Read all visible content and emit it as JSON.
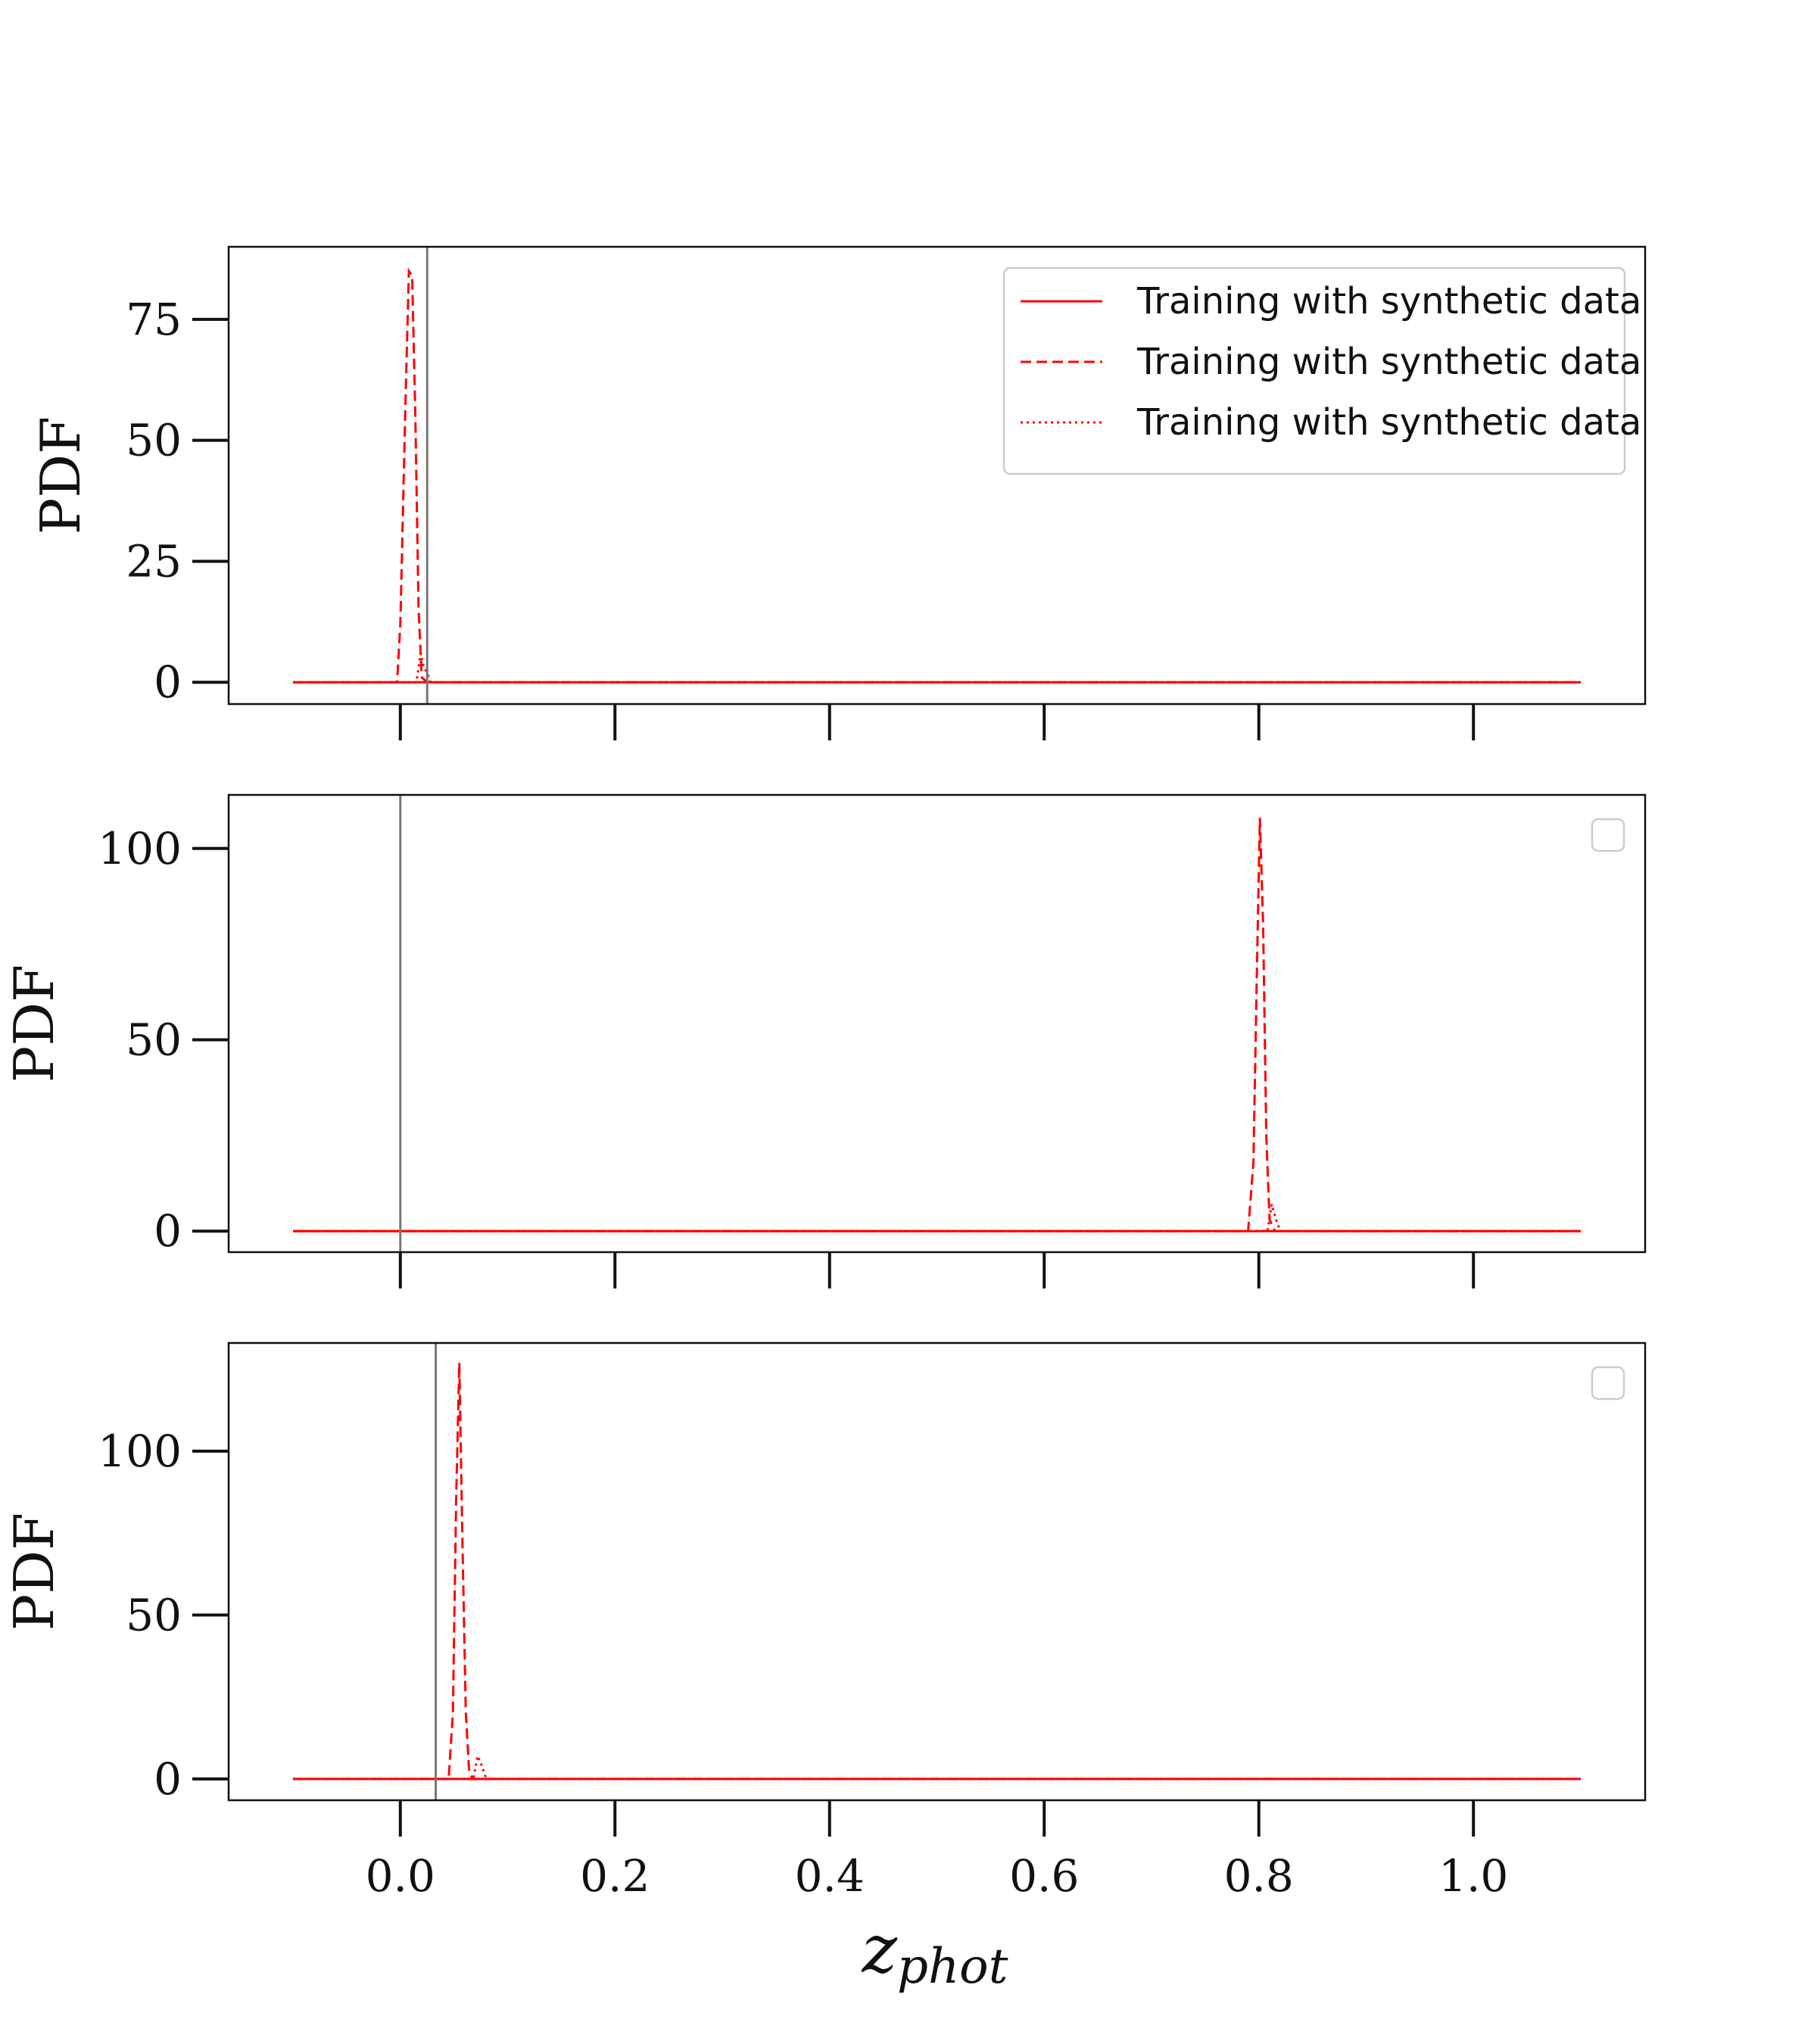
{
  "chart_data": [
    {
      "type": "line",
      "ylabel": "PDF",
      "xlim": [
        -0.16,
        1.16
      ],
      "ylim": [
        -4.5,
        90
      ],
      "yticks": [
        0,
        25,
        50,
        75
      ],
      "xticks": [
        0.0,
        0.2,
        0.4,
        0.6,
        0.8,
        1.0
      ],
      "vline_x": 0.025,
      "legend": {
        "placement": "upper-right",
        "entries": [
          {
            "label": "Training with synthetic data",
            "style": "solid"
          },
          {
            "label": "Training with synthetic data",
            "style": "dashed"
          },
          {
            "label": "Training with synthetic data",
            "style": "dotted"
          }
        ]
      },
      "series": [
        {
          "style": "solid",
          "x": [
            -0.1,
            1.1
          ],
          "y": [
            0,
            0
          ]
        },
        {
          "style": "dashed",
          "x": [
            -0.1,
            -0.003,
            0.0,
            0.005,
            0.008,
            0.011,
            0.014,
            0.017,
            0.02,
            0.025,
            1.1
          ],
          "y": [
            0,
            0,
            12,
            60,
            85,
            84,
            55,
            15,
            1,
            0,
            0
          ]
        },
        {
          "style": "dotted",
          "x": [
            -0.1,
            0.015,
            0.019,
            0.022,
            0.025,
            0.028,
            1.1
          ],
          "y": [
            0,
            0,
            6,
            3,
            2,
            0,
            0
          ]
        }
      ]
    },
    {
      "type": "line",
      "ylabel": "PDF",
      "xlim": [
        -0.16,
        1.16
      ],
      "ylim": [
        -5.5,
        114
      ],
      "yticks": [
        0,
        50,
        100
      ],
      "xticks": [
        0.0,
        0.2,
        0.4,
        0.6,
        0.8,
        1.0
      ],
      "vline_x": 0.0,
      "legend": {
        "placement": "upper-right",
        "entries": []
      },
      "series": [
        {
          "style": "solid",
          "x": [
            -0.1,
            1.1
          ],
          "y": [
            0,
            0
          ]
        },
        {
          "style": "dashed",
          "x": [
            -0.1,
            0.79,
            0.795,
            0.798,
            0.801,
            0.804,
            0.807,
            0.81,
            0.815,
            1.1
          ],
          "y": [
            0,
            0,
            18,
            65,
            108,
            80,
            25,
            3,
            0,
            0
          ]
        },
        {
          "style": "dotted",
          "x": [
            -0.1,
            0.808,
            0.812,
            0.816,
            0.82,
            1.1
          ],
          "y": [
            0,
            0,
            7,
            3,
            0,
            0
          ]
        }
      ]
    },
    {
      "type": "line",
      "ylabel": "PDF",
      "xlabel": "z_phot",
      "xlim": [
        -0.16,
        1.16
      ],
      "ylim": [
        -6.5,
        133
      ],
      "yticks": [
        0,
        50,
        100
      ],
      "xticks": [
        0.0,
        0.2,
        0.4,
        0.6,
        0.8,
        1.0
      ],
      "xtick_labels": [
        "0.0",
        "0.2",
        "0.4",
        "0.6",
        "0.8",
        "1.0"
      ],
      "vline_x": 0.033,
      "legend": {
        "placement": "upper-right",
        "entries": []
      },
      "series": [
        {
          "style": "solid",
          "x": [
            -0.1,
            1.1
          ],
          "y": [
            0,
            0
          ]
        },
        {
          "style": "dashed",
          "x": [
            -0.1,
            0.045,
            0.049,
            0.052,
            0.055,
            0.058,
            0.061,
            0.064,
            0.067,
            1.1
          ],
          "y": [
            0,
            0,
            20,
            85,
            127,
            70,
            20,
            3,
            0,
            0
          ]
        },
        {
          "style": "dotted",
          "x": [
            -0.1,
            0.068,
            0.072,
            0.076,
            0.08,
            1.1
          ],
          "y": [
            0,
            0,
            7,
            4,
            0,
            0
          ]
        }
      ]
    }
  ],
  "xlabel": {
    "main": "z",
    "sub": "phot"
  }
}
